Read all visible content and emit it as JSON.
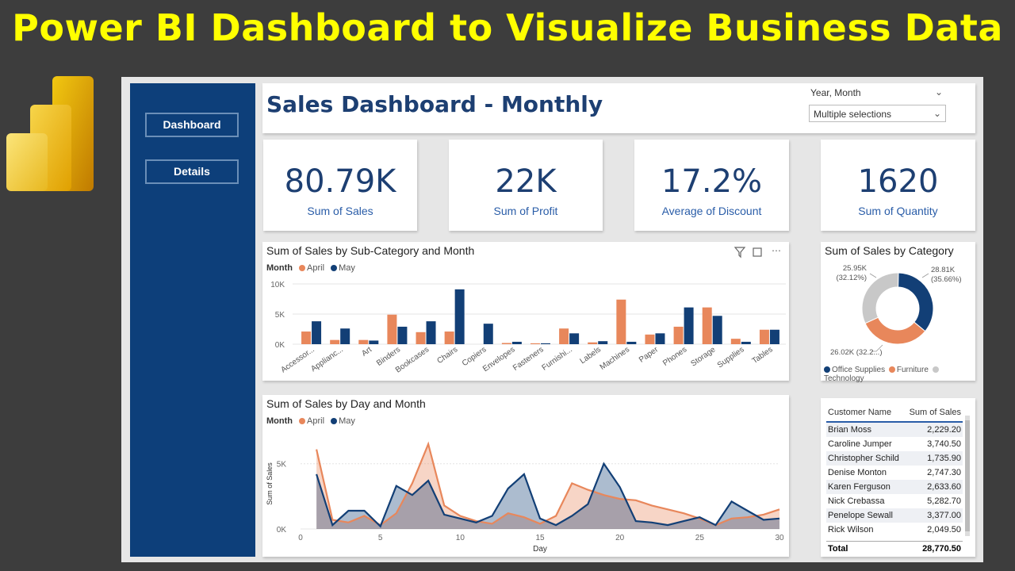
{
  "banner": "Power BI Dashboard to Visualize Business Data",
  "nav": [
    {
      "label": "Dashboard"
    },
    {
      "label": "Details"
    }
  ],
  "header": {
    "title": "Sales Dashboard - Monthly",
    "slicer_label": "Year, Month",
    "slicer_value": "Multiple selections"
  },
  "kpis": [
    {
      "value": "80.79K",
      "label": "Sum of Sales"
    },
    {
      "value": "22K",
      "label": "Sum of Profit"
    },
    {
      "value": "17.2%",
      "label": "Average of Discount"
    },
    {
      "value": "1620",
      "label": "Sum of Quantity"
    }
  ],
  "colors": {
    "april": "#e8875b",
    "may": "#123f76",
    "technology": "#c8c8c8",
    "accent": "#1d3f72"
  },
  "bar_chart": {
    "legend_title": "Month",
    "legend": [
      "April",
      "May"
    ]
  },
  "line_chart": {
    "legend_title": "Month",
    "legend": [
      "April",
      "May"
    ]
  },
  "donut": {
    "legend": [
      "Office Supplies",
      "Furniture",
      "Technology"
    ]
  },
  "table": {
    "headers": [
      "Customer Name",
      "Sum of Sales"
    ],
    "rows": [
      {
        "name": "Brian Moss",
        "sales": "2,229.20"
      },
      {
        "name": "Caroline Jumper",
        "sales": "3,740.50"
      },
      {
        "name": "Christopher Schild",
        "sales": "1,735.90"
      },
      {
        "name": "Denise Monton",
        "sales": "2,747.30"
      },
      {
        "name": "Karen Ferguson",
        "sales": "2,633.60"
      },
      {
        "name": "Nick Crebassa",
        "sales": "5,282.70"
      },
      {
        "name": "Penelope Sewall",
        "sales": "3,377.00"
      },
      {
        "name": "Rick Wilson",
        "sales": "2,049.50"
      }
    ],
    "total_label": "Total",
    "total_value": "28,770.50"
  },
  "chart_data": [
    {
      "type": "bar",
      "title": "Sum of Sales by Sub-Category and Month",
      "categories": [
        "Accessor...",
        "Applianc...",
        "Art",
        "Binders",
        "Bookcases",
        "Chairs",
        "Copiers",
        "Envelopes",
        "Fasteners",
        "Furnishi...",
        "Labels",
        "Machines",
        "Paper",
        "Phones",
        "Storage",
        "Supplies",
        "Tables"
      ],
      "series": [
        {
          "name": "April",
          "values": [
            2100,
            700,
            700,
            4900,
            2000,
            2100,
            0,
            200,
            150,
            2600,
            300,
            7400,
            1600,
            2900,
            6100,
            900,
            2400
          ]
        },
        {
          "name": "May",
          "values": [
            3800,
            2600,
            600,
            2900,
            3800,
            9100,
            3400,
            400,
            150,
            1800,
            500,
            400,
            1800,
            6100,
            4700,
            400,
            2400
          ]
        }
      ],
      "yticks": [
        "0K",
        "5K",
        "10K"
      ],
      "ylim": [
        0,
        10000
      ],
      "legend_title": "Month",
      "legend_position": "top-left"
    },
    {
      "type": "area",
      "title": "Sum of Sales by Day and Month",
      "x": [
        1,
        2,
        3,
        4,
        5,
        6,
        7,
        8,
        9,
        10,
        11,
        12,
        13,
        14,
        15,
        16,
        17,
        18,
        19,
        20,
        21,
        22,
        23,
        24,
        25,
        26,
        27,
        28,
        29,
        30
      ],
      "series": [
        {
          "name": "April",
          "values": [
            6100,
            700,
            500,
            1000,
            300,
            1200,
            3500,
            6500,
            1800,
            1000,
            600,
            400,
            1200,
            900,
            400,
            1000,
            3500,
            3000,
            2600,
            2300,
            2200,
            1800,
            1500,
            1200,
            800,
            300,
            800,
            900,
            1100,
            1500
          ]
        },
        {
          "name": "May",
          "values": [
            4200,
            300,
            1400,
            1400,
            200,
            3300,
            2600,
            3700,
            1100,
            800,
            500,
            1000,
            3100,
            4200,
            800,
            300,
            1000,
            1900,
            5000,
            3200,
            600,
            500,
            300,
            600,
            900,
            300,
            2100,
            1400,
            700,
            800
          ]
        }
      ],
      "xticks": [
        0,
        5,
        10,
        15,
        20,
        25,
        30
      ],
      "yticks": [
        "0K",
        "5K"
      ],
      "xlim": [
        0,
        30
      ],
      "ylim": [
        0,
        6500
      ],
      "xlabel": "Day",
      "ylabel": "Sum of Sales",
      "legend_title": "Month",
      "legend_position": "top-left"
    },
    {
      "type": "pie",
      "title": "Sum of Sales by Category",
      "slices": [
        {
          "name": "Office Supplies",
          "value": 28810,
          "label": "28.81K",
          "pct": "(35.66%)"
        },
        {
          "name": "Furniture",
          "value": 26020,
          "label": "26.02K (32.2...)",
          "pct": ""
        },
        {
          "name": "Technology",
          "value": 25950,
          "label": "25.95K",
          "pct": "(32.12%)"
        }
      ]
    }
  ]
}
